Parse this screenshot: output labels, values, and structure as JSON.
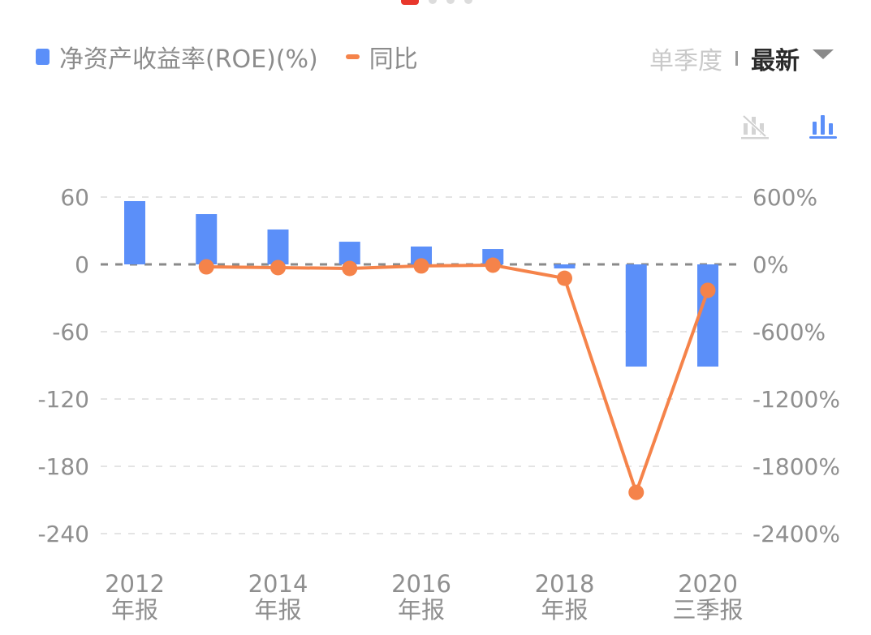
{
  "pager": {
    "count": 4,
    "active_index": 0
  },
  "legend": {
    "bar_label": "净资产收益率(ROE)(%)",
    "line_label": "同比"
  },
  "period_selector": {
    "quarter_label": "单季度",
    "latest_label": "最新",
    "selected": "最新"
  },
  "view_toggle": {
    "hide_line_icon": "bar-line-off-icon",
    "bar_chart_icon": "bar-chart-icon",
    "active": "bar-chart-icon"
  },
  "colors": {
    "bar": "#5b8ff9",
    "line": "#f5834a",
    "axis_text": "#8f8f8f",
    "grid": "#e4e4e4",
    "zero_line": "#8a8a8a",
    "pager_active": "#e8372c",
    "inactive_icon": "#cfcfcf"
  },
  "chart_data": {
    "type": "bar",
    "title": "",
    "xlabel": "",
    "ylabel": "净资产收益率(ROE)(%)",
    "y2label": "同比",
    "categories": [
      "2012年报",
      "2013年报",
      "2014年报",
      "2015年报",
      "2016年报",
      "2017年报",
      "2018年报",
      "2019年报",
      "2020三季报"
    ],
    "x_tick_labels": [
      {
        "index": 0,
        "line1": "2012",
        "line2": "年报"
      },
      {
        "index": 2,
        "line1": "2014",
        "line2": "年报"
      },
      {
        "index": 4,
        "line1": "2016",
        "line2": "年报"
      },
      {
        "index": 6,
        "line1": "2018",
        "line2": "年报"
      },
      {
        "index": 8,
        "line1": "2020",
        "line2": "三季报"
      }
    ],
    "series": [
      {
        "name": "净资产收益率(ROE)(%)",
        "type": "bar",
        "axis": "left",
        "values": [
          56.4,
          44.8,
          31.1,
          20.2,
          15.9,
          13.7,
          -3.6,
          -91.1,
          -91.1
        ]
      },
      {
        "name": "同比",
        "type": "line",
        "axis": "right",
        "values": [
          null,
          -22,
          -29,
          -36,
          -14,
          -7,
          -124,
          -2032,
          -231
        ]
      }
    ],
    "ylim": [
      -240,
      60
    ],
    "y_ticks": [
      60,
      0,
      -60,
      -120,
      -180,
      -240
    ],
    "y_tick_labels": [
      "60",
      "0",
      "-60",
      "-120",
      "-180",
      "-240"
    ],
    "y2lim": [
      -2400,
      600
    ],
    "y2_ticks": [
      600,
      0,
      -600,
      -1200,
      -1800,
      -2400
    ],
    "y2_tick_labels": [
      "600%",
      "0%",
      "-600%",
      "-1200%",
      "-1800%",
      "-2400%"
    ],
    "grid": true,
    "legend_position": "top-left"
  }
}
